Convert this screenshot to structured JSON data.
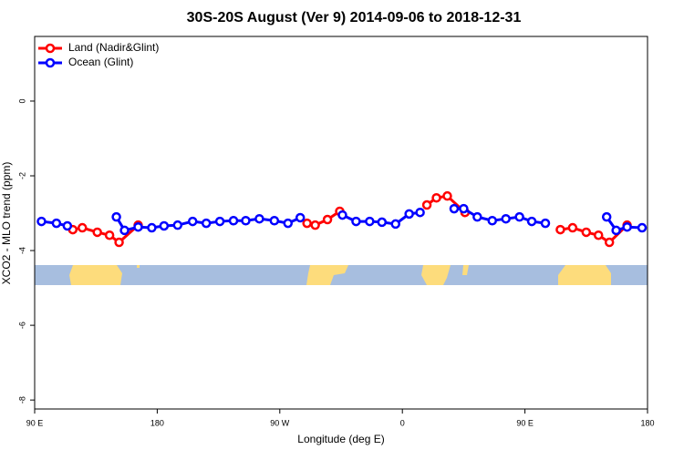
{
  "chart_data": {
    "type": "line",
    "title": "30S-20S August (Ver 9)   2014-09-06 to 2018-12-31",
    "x_label": "Longitude (deg E)",
    "y_label": "XCO2 - MLO trend (ppm)",
    "xlim": [
      90,
      540
    ],
    "xticks": [
      {
        "value": 90,
        "label": "90 E"
      },
      {
        "value": 180,
        "label": "180"
      },
      {
        "value": 270,
        "label": "90 W"
      },
      {
        "value": 360,
        "label": "0"
      },
      {
        "value": 450,
        "label": "90 E"
      },
      {
        "value": 540,
        "label": "180"
      }
    ],
    "ylim": [
      -8.24,
      1.73
    ],
    "yticks": [
      0,
      -2,
      -4,
      -6,
      -8
    ],
    "legend": "top-left",
    "series": [
      {
        "name": "Land (Nadir&Glint)",
        "color": "#ff0000",
        "x": [
          118,
          125,
          136,
          145,
          152,
          166,
          null,
          290,
          296,
          305,
          314,
          null,
          378,
          385,
          393,
          406,
          null,
          476,
          485,
          495,
          504,
          512,
          525
        ],
        "values": [
          -3.44,
          -3.39,
          -3.51,
          -3.59,
          -3.78,
          -3.32,
          null,
          -3.27,
          -3.32,
          -3.17,
          -2.95,
          null,
          -2.78,
          -2.59,
          -2.54,
          -2.98,
          null,
          -3.44,
          -3.39,
          -3.51,
          -3.59,
          -3.78,
          -3.32
        ]
      },
      {
        "name": "Ocean (Glint)",
        "color": "#0000ff",
        "x": [
          95,
          106,
          114,
          null,
          150,
          156,
          166,
          176,
          185,
          195,
          206,
          216,
          226,
          236,
          245,
          255,
          266,
          276,
          285,
          null,
          316,
          326,
          336,
          345,
          355,
          365,
          373,
          null,
          398,
          405,
          415,
          426,
          436,
          446,
          455,
          465,
          null,
          510,
          517,
          525,
          536
        ],
        "values": [
          -3.22,
          -3.27,
          -3.34,
          null,
          -3.1,
          -3.46,
          -3.37,
          -3.39,
          -3.34,
          -3.32,
          -3.22,
          -3.27,
          -3.22,
          -3.2,
          -3.2,
          -3.15,
          -3.2,
          -3.27,
          -3.12,
          null,
          -3.05,
          -3.22,
          -3.22,
          -3.24,
          -3.29,
          -3.02,
          -2.98,
          null,
          -2.88,
          -2.88,
          -3.1,
          -3.2,
          -3.15,
          -3.1,
          -3.22,
          -3.27,
          null,
          -3.1,
          -3.46,
          -3.37,
          -3.39
        ]
      }
    ]
  }
}
